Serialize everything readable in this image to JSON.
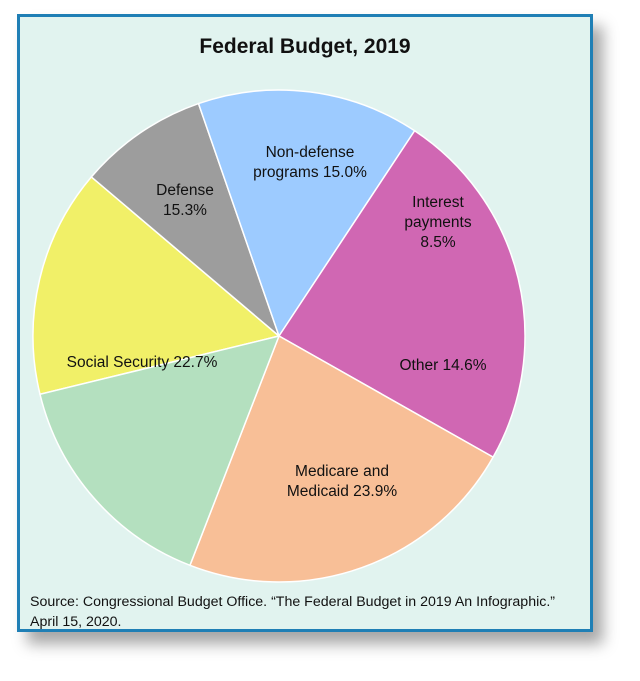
{
  "chart_data": {
    "type": "pie",
    "title": "Federal Budget, 2019",
    "slices": [
      {
        "label": "Non-defense programs",
        "value": 15.0,
        "value_label": "15.0%",
        "text_lines": [
          "Non-defense",
          "programs 15.0%"
        ],
        "color": "#f1f068"
      },
      {
        "label": "Interest payments",
        "value": 8.5,
        "value_label": "8.5%",
        "text_lines": [
          "Interest",
          "payments",
          "8.5%"
        ],
        "color": "#9d9d9d"
      },
      {
        "label": "Other",
        "value": 14.6,
        "value_label": "14.6%",
        "text_lines": [
          "Other 14.6%"
        ],
        "color": "#9dcbff"
      },
      {
        "label": "Medicare and Medicaid",
        "value": 23.9,
        "value_label": "23.9%",
        "text_lines": [
          "Medicare and",
          "Medicaid 23.9%"
        ],
        "color": "#d067b3"
      },
      {
        "label": "Social Security",
        "value": 22.7,
        "value_label": "22.7%",
        "text_lines": [
          "Social Security 22.7%"
        ],
        "color": "#f8bf97"
      },
      {
        "label": "Defense",
        "value": 15.3,
        "value_label": "15.3%",
        "text_lines": [
          "Defense",
          "15.3%"
        ],
        "color": "#b4e0bf"
      }
    ],
    "source_lines": [
      "Source: Congressional Budget Office. “The Federal Budget in 2019 An Infographic.”",
      "April 15, 2020."
    ]
  }
}
